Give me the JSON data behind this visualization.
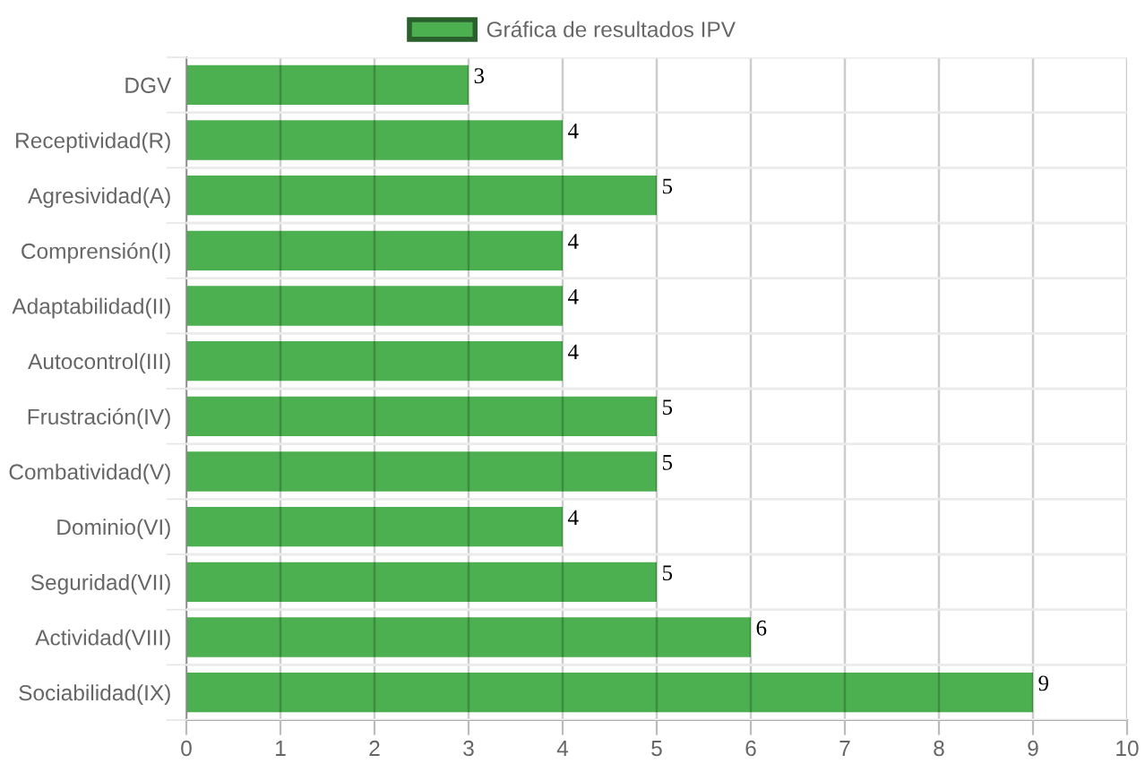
{
  "chart_data": {
    "type": "bar",
    "orientation": "horizontal",
    "categories": [
      "DGV",
      "Receptividad(R)",
      "Agresividad(A)",
      "Comprensión(I)",
      "Adaptabilidad(II)",
      "Autocontrol(III)",
      "Frustración(IV)",
      "Combatividad(V)",
      "Dominio(VI)",
      "Seguridad(VII)",
      "Actividad(VIII)",
      "Sociabilidad(IX)"
    ],
    "series": [
      {
        "name": "Gráfica de resultados IPV",
        "color": "#4caf50",
        "values": [
          3,
          4,
          5,
          4,
          4,
          4,
          5,
          5,
          4,
          5,
          6,
          9
        ]
      }
    ],
    "xlim": [
      0,
      10
    ],
    "xticks": [
      0,
      1,
      2,
      3,
      4,
      5,
      6,
      7,
      8,
      9,
      10
    ],
    "grid": true,
    "legend": "top",
    "data_labels": true
  }
}
